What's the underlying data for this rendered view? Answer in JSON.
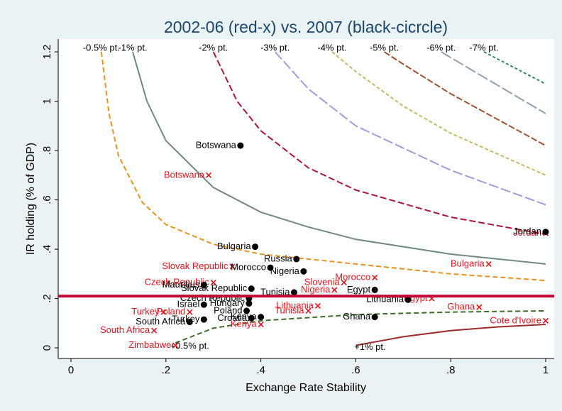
{
  "chart_data": {
    "type": "scatter",
    "title": "2002-06 (red-x) vs. 2007 (black-cicrcle)",
    "x_label": "Exchange Rate Stability",
    "y_label": "IR holding (% of GDP)",
    "xlim": [
      -0.027,
      1.018
    ],
    "ylim": [
      -0.043,
      1.252
    ],
    "xticks": [
      0,
      {
        "value": 0.2,
        "label": ".2"
      },
      {
        "value": 0.4,
        "label": ".4"
      },
      {
        "value": 0.6,
        "label": ".6"
      },
      {
        "value": 0.8,
        "label": ".8"
      },
      1
    ],
    "yticks": [
      0,
      {
        "value": 0.2,
        "label": ".2"
      },
      {
        "value": 0.4,
        "label": ".4"
      },
      {
        "value": 0.6,
        "label": ".6"
      },
      {
        "value": 0.8,
        "label": ".8"
      },
      1,
      1.2
    ],
    "hlines": [
      {
        "value": 0.21,
        "color": "#c10534"
      }
    ],
    "series": [
      {
        "name": "-0.5% pt.",
        "type": "line",
        "color": "#e8931e",
        "dash": "7 4",
        "x": [
          0.064,
          0.08,
          0.1,
          0.15,
          0.2,
          0.3,
          0.4,
          0.6,
          0.8,
          1
        ],
        "values": [
          1.2,
          0.95,
          0.78,
          0.59,
          0.5,
          0.42,
          0.38,
          0.34,
          0.3,
          0.273
        ]
      },
      {
        "name": "-1% pt.",
        "type": "line",
        "color": "#6f8a80",
        "dash": "none",
        "x": [
          0.13,
          0.16,
          0.2,
          0.3,
          0.4,
          0.5,
          0.6,
          0.8,
          1
        ],
        "values": [
          1.2,
          1.0,
          0.84,
          0.65,
          0.55,
          0.49,
          0.44,
          0.38,
          0.34
        ]
      },
      {
        "name": "-2% pt.",
        "type": "line",
        "color": "#b0133c",
        "dash": "9 4",
        "x": [
          0.3,
          0.35,
          0.4,
          0.5,
          0.6,
          0.8,
          1
        ],
        "values": [
          1.2,
          1.0,
          0.88,
          0.73,
          0.64,
          0.53,
          0.46
        ]
      },
      {
        "name": "-3% pt.",
        "type": "line",
        "color": "#9b9de0",
        "dash": "14 4",
        "x": [
          0.43,
          0.5,
          0.6,
          0.8,
          1
        ],
        "values": [
          1.2,
          1.05,
          0.9,
          0.72,
          0.58
        ]
      },
      {
        "name": "-4% pt.",
        "type": "line",
        "color": "#c8b864",
        "dash": "5 3",
        "x": [
          0.55,
          0.6,
          0.7,
          0.8,
          1
        ],
        "values": [
          1.2,
          1.12,
          0.98,
          0.87,
          0.7
        ]
      },
      {
        "name": "-5% pt.",
        "type": "line",
        "color": "#a0522d",
        "dash": "9 3",
        "x": [
          0.66,
          0.7,
          0.8,
          1
        ],
        "values": [
          1.2,
          1.15,
          1.03,
          0.82
        ]
      },
      {
        "name": "-6% pt.",
        "type": "line",
        "color": "#8ca0b0",
        "dash": "16 4",
        "x": [
          0.78,
          0.85,
          1
        ],
        "values": [
          1.2,
          1.12,
          0.95
        ]
      },
      {
        "name": "-7% pt.",
        "type": "line",
        "color": "#2e8b57",
        "dash": "4 3",
        "x": [
          0.87,
          0.92,
          1
        ],
        "values": [
          1.2,
          1.15,
          1.07
        ]
      },
      {
        "name": "+0.5% pt.",
        "type": "line",
        "color": "#3f6e2a",
        "dash": "7 4",
        "x": [
          0.22,
          0.3,
          0.4,
          0.6,
          0.8,
          1
        ],
        "values": [
          0.02,
          0.08,
          0.11,
          0.135,
          0.145,
          0.15
        ]
      },
      {
        "name": "+1% pt.",
        "type": "line",
        "color": "#9e2a2a",
        "dash": "none",
        "x": [
          0.6,
          0.7,
          0.8,
          0.9,
          1
        ],
        "values": [
          0.01,
          0.045,
          0.07,
          0.085,
          0.095
        ]
      },
      {
        "type": "scatter",
        "marker": "x",
        "color": "#e8141e",
        "labels": [
          "Botswana",
          "Slovak Republic",
          "Czech Republic",
          "Mauritius",
          "Morocco",
          "Slovenia",
          "Nigeria",
          "Bulgaria",
          "Jordan",
          "Egypt",
          "Ghana",
          "Cote d'Ivoire",
          "Lithuania",
          "Tunisia",
          "Kenya",
          "Turkey",
          "Poland",
          "South Africa",
          "Zimbabwe"
        ],
        "x": [
          0.29,
          0.34,
          0.3,
          0.28,
          0.64,
          0.575,
          0.555,
          0.88,
          1.0,
          0.76,
          0.86,
          1.0,
          0.52,
          0.5,
          0.4,
          0.195,
          0.25,
          0.175,
          0.22
        ],
        "values": [
          0.7,
          0.33,
          0.265,
          0.255,
          0.285,
          0.265,
          0.235,
          0.34,
          0.465,
          0.2,
          0.165,
          0.11,
          0.17,
          0.15,
          0.095,
          0.145,
          0.145,
          0.07,
          0.01
        ]
      },
      {
        "type": "scatter",
        "marker": "circle",
        "color": "#000000",
        "labels": [
          "Botswana",
          "Bulgaria",
          "Russia",
          "Morocco",
          "Nigeria",
          "Mauritius",
          "Slovak Republic",
          "Tunisia",
          "Egypt",
          "Lithuania",
          "Czech Republic",
          "Israel",
          "Hungary",
          "Poland",
          "Turkey",
          "South Africa",
          "Kenya",
          "Croatia",
          "Ghana",
          "Jordan"
        ],
        "x": [
          0.357,
          0.388,
          0.475,
          0.42,
          0.49,
          0.28,
          0.38,
          0.47,
          0.64,
          0.71,
          0.375,
          0.28,
          0.375,
          0.37,
          0.28,
          0.25,
          0.4,
          0.38,
          0.64,
          1.0
        ],
        "values": [
          0.82,
          0.41,
          0.36,
          0.325,
          0.31,
          0.255,
          0.24,
          0.225,
          0.235,
          0.195,
          0.2,
          0.175,
          0.18,
          0.15,
          0.115,
          0.105,
          0.125,
          0.12,
          0.125,
          0.47
        ]
      }
    ]
  }
}
